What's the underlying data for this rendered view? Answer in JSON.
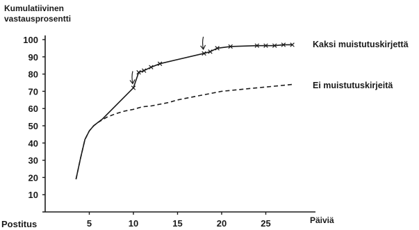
{
  "chart_data": {
    "type": "line",
    "title": "",
    "ylabel_line1": "Kumulatiivinen",
    "ylabel_line2": "vastausprosentti",
    "xlabel": "Päiviä",
    "x_origin_label": "Postitus",
    "xlim": [
      0,
      30
    ],
    "ylim": [
      0,
      100
    ],
    "x_ticks": [
      5,
      10,
      15,
      20,
      25
    ],
    "y_ticks": [
      10,
      20,
      30,
      40,
      50,
      60,
      70,
      80,
      90,
      100
    ],
    "grid": false,
    "legend": "direct-labels-right",
    "series": [
      {
        "name": "Kaksi muistutuskirjettä",
        "style": "solid-with-x-markers",
        "x": [
          3.5,
          4,
          4.5,
          5,
          5.5,
          6,
          6.5,
          10,
          10.6,
          11.2,
          12,
          13,
          18,
          18.7,
          19.5,
          21,
          24,
          25,
          26,
          27,
          28
        ],
        "y": [
          19,
          31,
          42,
          47,
          50,
          52,
          54,
          72,
          81,
          82,
          84,
          86,
          92,
          93,
          95,
          96,
          96.5,
          96.5,
          96.5,
          97,
          97
        ]
      },
      {
        "name": "Ei muistutuskirjeitä",
        "style": "dashed",
        "x": [
          3.5,
          4,
          4.5,
          5,
          5.5,
          6,
          6.5,
          7,
          8,
          9,
          10,
          11,
          12,
          13,
          14,
          15,
          16,
          17,
          18,
          19,
          20,
          22,
          24,
          26,
          28
        ],
        "y": [
          19,
          31,
          42,
          47,
          50,
          52,
          53.5,
          55,
          57,
          58.5,
          59.5,
          61,
          61.5,
          62.5,
          63.5,
          65,
          66,
          67,
          68,
          69,
          70,
          71,
          72,
          73,
          74
        ]
      }
    ],
    "annotations": [
      {
        "type": "arrow-down",
        "x": 10,
        "y": 72
      },
      {
        "type": "arrow-down",
        "x": 18,
        "y": 92
      }
    ]
  }
}
